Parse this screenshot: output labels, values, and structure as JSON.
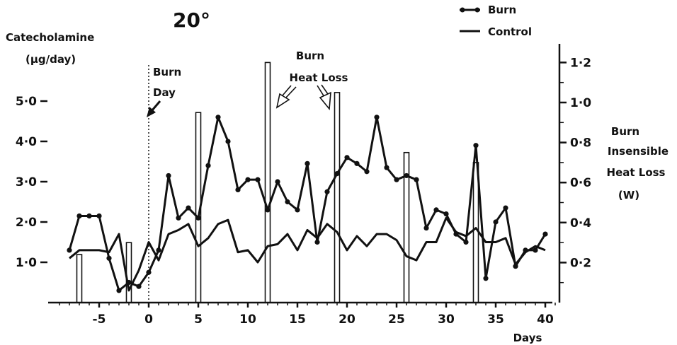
{
  "chart_data": {
    "type": "line",
    "title": "20°",
    "xlabel": "Days",
    "ylabel_left": [
      "Catecholamine",
      "(μg/day)"
    ],
    "ylabel_right": [
      "Burn",
      "Insensible",
      "Heat Loss",
      "(W)"
    ],
    "xlim": [
      -9,
      41
    ],
    "ylim_left": [
      0,
      6.2
    ],
    "ylim_right": [
      0,
      1.26
    ],
    "x_ticks": [
      -5,
      0,
      5,
      10,
      15,
      20,
      25,
      30,
      35,
      40
    ],
    "x_tick_labels": [
      "-5",
      "0",
      "5",
      "10",
      "15",
      "20",
      "25",
      "30",
      "35",
      "40"
    ],
    "y_left_ticks": [
      1,
      2,
      3,
      4,
      5
    ],
    "y_left_tick_labels": [
      "1·0",
      "2·0",
      "3·0",
      "4·0",
      "5·0"
    ],
    "y_right_ticks": [
      0.2,
      0.4,
      0.6,
      0.8,
      1.0,
      1.2
    ],
    "y_right_tick_labels": [
      "0·2",
      "0·4",
      "0·6",
      "0·8",
      "1·0",
      "1·2"
    ],
    "legend": {
      "placement": "top-right",
      "entries": [
        "Burn",
        "Control"
      ]
    },
    "annotations": {
      "burn_day": [
        "Burn",
        "Day"
      ],
      "burn_heat_loss": [
        "Burn",
        "Heat Loss"
      ]
    },
    "series": [
      {
        "name": "Burn",
        "x": [
          -8,
          -7,
          -6,
          -5,
          -4,
          -3,
          -2,
          -1,
          0,
          1,
          2,
          3,
          4,
          5,
          6,
          7,
          8,
          9,
          10,
          11,
          12,
          13,
          14,
          15,
          16,
          17,
          18,
          19,
          20,
          21,
          22,
          23,
          24,
          25,
          26,
          27,
          28,
          29,
          30,
          31,
          32,
          33,
          34,
          35,
          36,
          37,
          38,
          39,
          40
        ],
        "values": [
          1.3,
          2.15,
          2.15,
          2.15,
          1.1,
          0.3,
          0.5,
          0.4,
          0.75,
          1.3,
          3.15,
          2.1,
          2.35,
          2.1,
          3.4,
          4.6,
          4.0,
          2.8,
          3.05,
          3.05,
          2.3,
          3.0,
          2.5,
          2.3,
          3.45,
          1.5,
          2.75,
          3.2,
          3.6,
          3.45,
          3.25,
          4.6,
          3.35,
          3.05,
          3.15,
          3.05,
          1.85,
          2.3,
          2.2,
          1.7,
          1.5,
          3.9,
          0.6,
          2.0,
          2.35,
          0.9,
          1.3,
          1.3,
          1.7
        ]
      },
      {
        "name": "Control",
        "x": [
          -8,
          -7,
          -6,
          -5,
          -4,
          -3,
          -2,
          -1,
          0,
          1,
          2,
          3,
          4,
          5,
          6,
          7,
          8,
          9,
          10,
          11,
          12,
          13,
          14,
          15,
          16,
          17,
          18,
          19,
          20,
          21,
          22,
          23,
          24,
          25,
          26,
          27,
          28,
          29,
          30,
          31,
          32,
          33,
          34,
          35,
          36,
          37,
          38,
          39,
          40
        ],
        "values": [
          1.1,
          1.3,
          1.3,
          1.3,
          1.25,
          1.7,
          0.3,
          0.8,
          1.5,
          1.05,
          1.7,
          1.8,
          1.95,
          1.4,
          1.6,
          1.95,
          2.05,
          1.25,
          1.3,
          1.0,
          1.4,
          1.45,
          1.7,
          1.3,
          1.8,
          1.6,
          1.95,
          1.75,
          1.3,
          1.65,
          1.4,
          1.7,
          1.7,
          1.55,
          1.15,
          1.05,
          1.5,
          1.5,
          2.1,
          1.75,
          1.65,
          1.85,
          1.5,
          1.5,
          1.6,
          0.95,
          1.25,
          1.4,
          1.3
        ]
      },
      {
        "name": "Burn Heat Loss",
        "axis": "right",
        "type": "bar",
        "x": [
          -7,
          -2,
          5,
          12,
          19,
          26,
          33
        ],
        "values": [
          0.24,
          0.3,
          0.95,
          1.2,
          1.05,
          0.75,
          0.7
        ]
      }
    ]
  }
}
